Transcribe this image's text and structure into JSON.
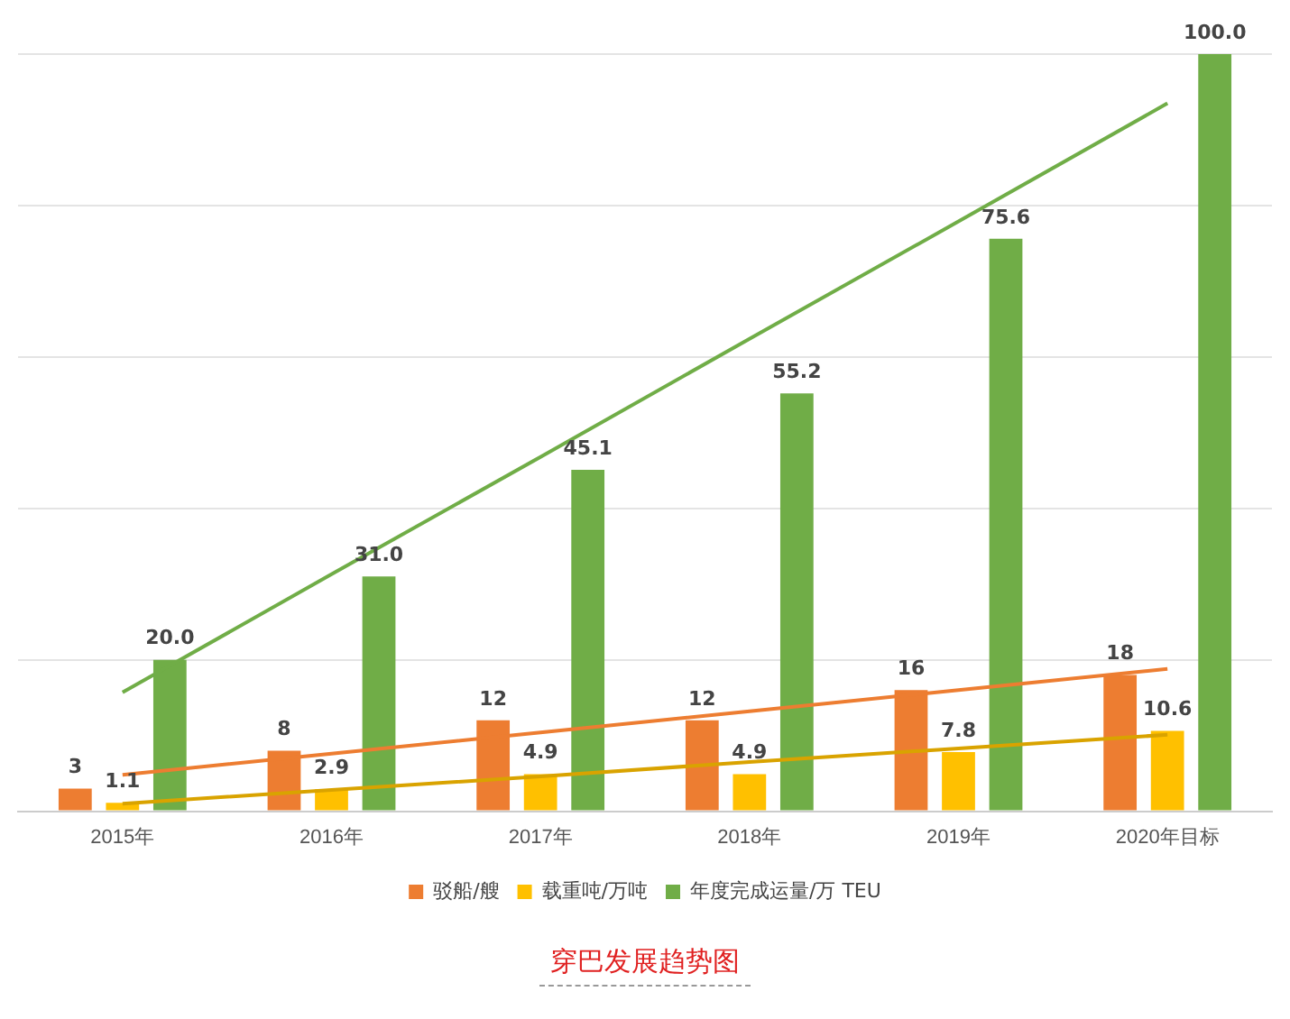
{
  "chart_data": {
    "type": "bar",
    "title": "穿巴发展趋势图",
    "categories": [
      "2015年",
      "2016年",
      "2017年",
      "2018年",
      "2019年",
      "2020年目标"
    ],
    "series": [
      {
        "name": "驳船/艘",
        "color": "#ed7d31",
        "values": [
          3,
          8,
          12,
          12,
          16,
          18
        ],
        "value_labels": [
          "3",
          "8",
          "12",
          "12",
          "16",
          "18"
        ]
      },
      {
        "name": "载重吨/万吨",
        "color": "#ffc000",
        "values": [
          1.1,
          2.9,
          4.9,
          4.9,
          7.8,
          10.6
        ],
        "value_labels": [
          "1.1",
          "2.9",
          "4.9",
          "4.9",
          "7.8",
          "10.6"
        ]
      },
      {
        "name": "年度完成运量/万 TEU",
        "color": "#70ad47",
        "values": [
          20.0,
          31.0,
          45.1,
          55.2,
          75.6,
          100.0
        ],
        "value_labels": [
          "20.0",
          "31.0",
          "45.1",
          "55.2",
          "75.6",
          "100.0"
        ]
      },
      {
        "type": "line",
        "color": "#ed7d31",
        "values": [
          4.8,
          7.6,
          10.4,
          13.2,
          16.0,
          18.8
        ]
      },
      {
        "type": "line",
        "color": "#d9a300",
        "values": [
          1.0,
          2.8,
          4.6,
          6.5,
          8.3,
          10.1
        ]
      },
      {
        "type": "line",
        "color": "#70ad47",
        "values": [
          15.7,
          31.3,
          46.8,
          62.4,
          77.9,
          93.5
        ]
      }
    ],
    "ylim": [
      0,
      100
    ],
    "yticks": [
      {
        "value": 0,
        "label": null
      },
      {
        "value": 20,
        "label": null
      },
      {
        "value": 40,
        "label": null
      },
      {
        "value": 60,
        "label": null
      },
      {
        "value": 80,
        "label": null
      },
      {
        "value": 100,
        "label": null
      }
    ],
    "grid": "y",
    "tick_labels": "x",
    "legend": "bottom",
    "marker": "none",
    "line_style": "solid"
  }
}
